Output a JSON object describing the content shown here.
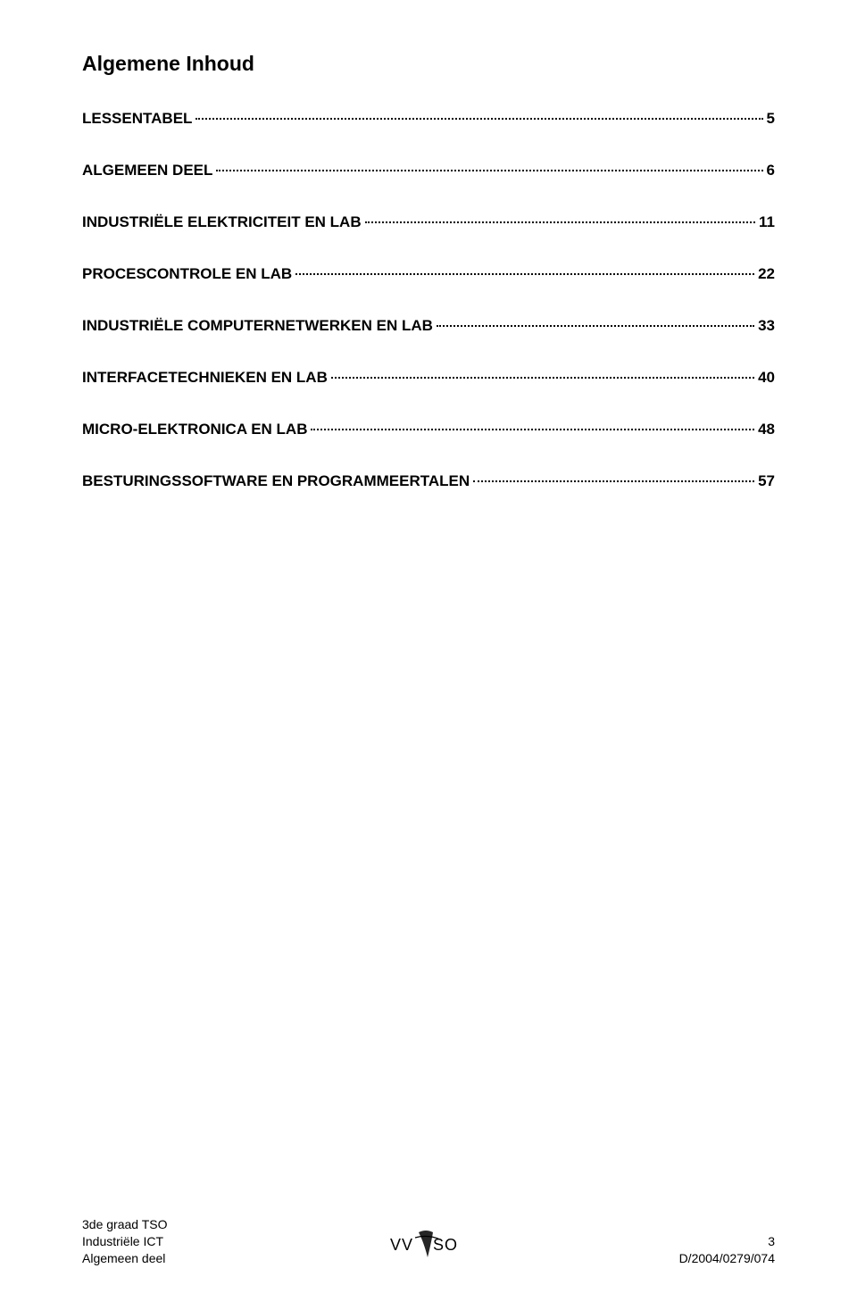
{
  "title": "Algemene Inhoud",
  "toc": [
    {
      "label": "LESSENTABEL",
      "page": "5"
    },
    {
      "label": "ALGEMEEN DEEL",
      "page": "6"
    },
    {
      "label": "INDUSTRIËLE ELEKTRICITEIT EN LAB",
      "page": "11"
    },
    {
      "label": "PROCESCONTROLE EN LAB",
      "page": "22"
    },
    {
      "label": "INDUSTRIËLE COMPUTERNETWERKEN EN LAB",
      "page": "33"
    },
    {
      "label": "INTERFACETECHNIEKEN EN LAB",
      "page": "40"
    },
    {
      "label": "MICRO-ELEKTRONICA EN LAB",
      "page": "48"
    },
    {
      "label": "BESTURINGSSOFTWARE EN PROGRAMMEERTALEN",
      "page": "57"
    }
  ],
  "footer": {
    "left_line1": "3de graad TSO",
    "left_line2": "Industriële ICT",
    "left_line3": "Algemeen deel",
    "right_line1": "3",
    "right_line2": "D/2004/0279/074",
    "logo_text": "VVKSO"
  }
}
